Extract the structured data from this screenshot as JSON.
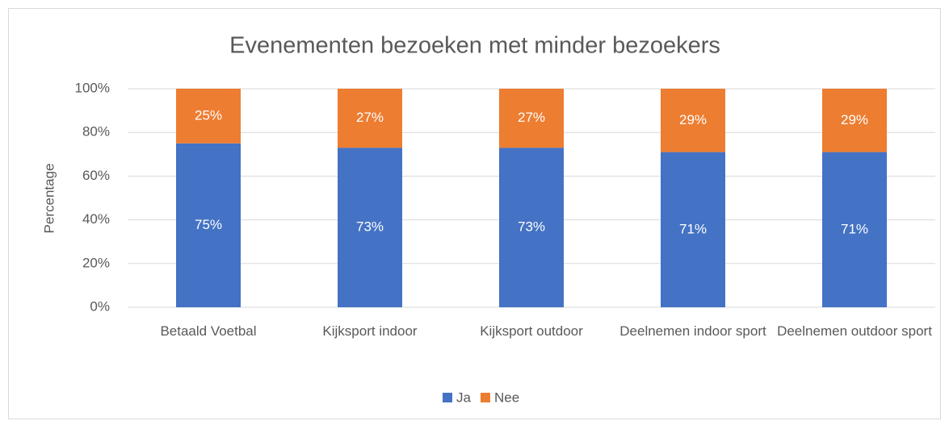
{
  "chart_data": {
    "type": "stacked_bar",
    "title": "Evenementen bezoeken met minder bezoekers",
    "y_label": "Percentage",
    "categories": [
      "Betaald Voetbal",
      "Kijksport indoor",
      "Kijksport outdoor",
      "Deelnemen indoor sport",
      "Deelnemen outdoor sport"
    ],
    "series": [
      {
        "name": "Ja",
        "color": "#4472c4",
        "values": [
          75,
          73,
          73,
          71,
          71
        ],
        "value_labels": [
          "75%",
          "73%",
          "73%",
          "71%",
          "71%"
        ]
      },
      {
        "name": "Nee",
        "color": "#ed7d31",
        "values": [
          25,
          27,
          27,
          29,
          29
        ],
        "value_labels": [
          "25%",
          "27%",
          "27%",
          "29%",
          "29%"
        ]
      }
    ],
    "ylim": [
      0,
      100
    ],
    "yticks": [
      {
        "value": 0,
        "label": "0%"
      },
      {
        "value": 20,
        "label": "20%"
      },
      {
        "value": 40,
        "label": "40%"
      },
      {
        "value": 60,
        "label": "60%"
      },
      {
        "value": 80,
        "label": "80%"
      },
      {
        "value": 100,
        "label": "100%"
      }
    ],
    "grid": true,
    "legend": "bottom"
  }
}
